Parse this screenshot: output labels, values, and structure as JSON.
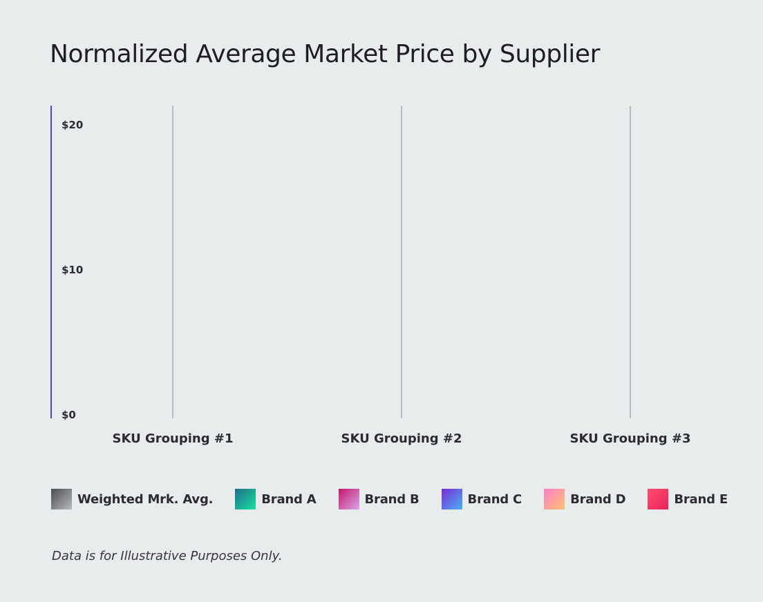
{
  "chart_data": {
    "type": "bar",
    "title": "Normalized Average Market Price by Supplier",
    "xlabel": "",
    "ylabel": "",
    "categories": [
      "SKU Grouping #1",
      "SKU Grouping #2",
      "SKU Grouping #3"
    ],
    "ylim": [
      0,
      20
    ],
    "yticks": [
      0,
      10,
      20
    ],
    "ytick_labels": [
      "$0",
      "$10",
      "$20"
    ],
    "grid": false,
    "legend_position": "bottom",
    "series": [
      {
        "name": "Weighted Mrk. Avg.",
        "values": [
          null,
          null,
          null
        ]
      },
      {
        "name": "Brand A",
        "values": [
          null,
          null,
          null
        ]
      },
      {
        "name": "Brand B",
        "values": [
          null,
          null,
          null
        ]
      },
      {
        "name": "Brand C",
        "values": [
          null,
          null,
          null
        ]
      },
      {
        "name": "Brand D",
        "values": [
          null,
          null,
          null
        ]
      },
      {
        "name": "Brand E",
        "values": [
          null,
          null,
          null
        ]
      }
    ],
    "footnote": "Data is for Illustrative Purposes Only."
  },
  "colors": {
    "background": "#e8ecec",
    "axis_line": "#5b3fd6",
    "category_line": "#8a8d90",
    "swatches": [
      [
        "#4a4c50",
        "#b9bcbf"
      ],
      [
        "#1f6f8b",
        "#19e0a0"
      ],
      [
        "#c2186a",
        "#d9a6e8"
      ],
      [
        "#7b2bd9",
        "#4ab0f5"
      ],
      [
        "#ff7fc8",
        "#ffc070"
      ],
      [
        "#ff4d6a",
        "#e8245f"
      ]
    ]
  },
  "legend": {
    "items": [
      {
        "label": "Weighted Mrk. Avg.",
        "icon": "gradient-swatch"
      },
      {
        "label": "Brand A",
        "icon": "gradient-swatch"
      },
      {
        "label": "Brand B",
        "icon": "gradient-swatch"
      },
      {
        "label": "Brand C",
        "icon": "gradient-swatch"
      },
      {
        "label": "Brand D",
        "icon": "gradient-swatch"
      },
      {
        "label": "Brand E",
        "icon": "gradient-swatch"
      }
    ]
  }
}
